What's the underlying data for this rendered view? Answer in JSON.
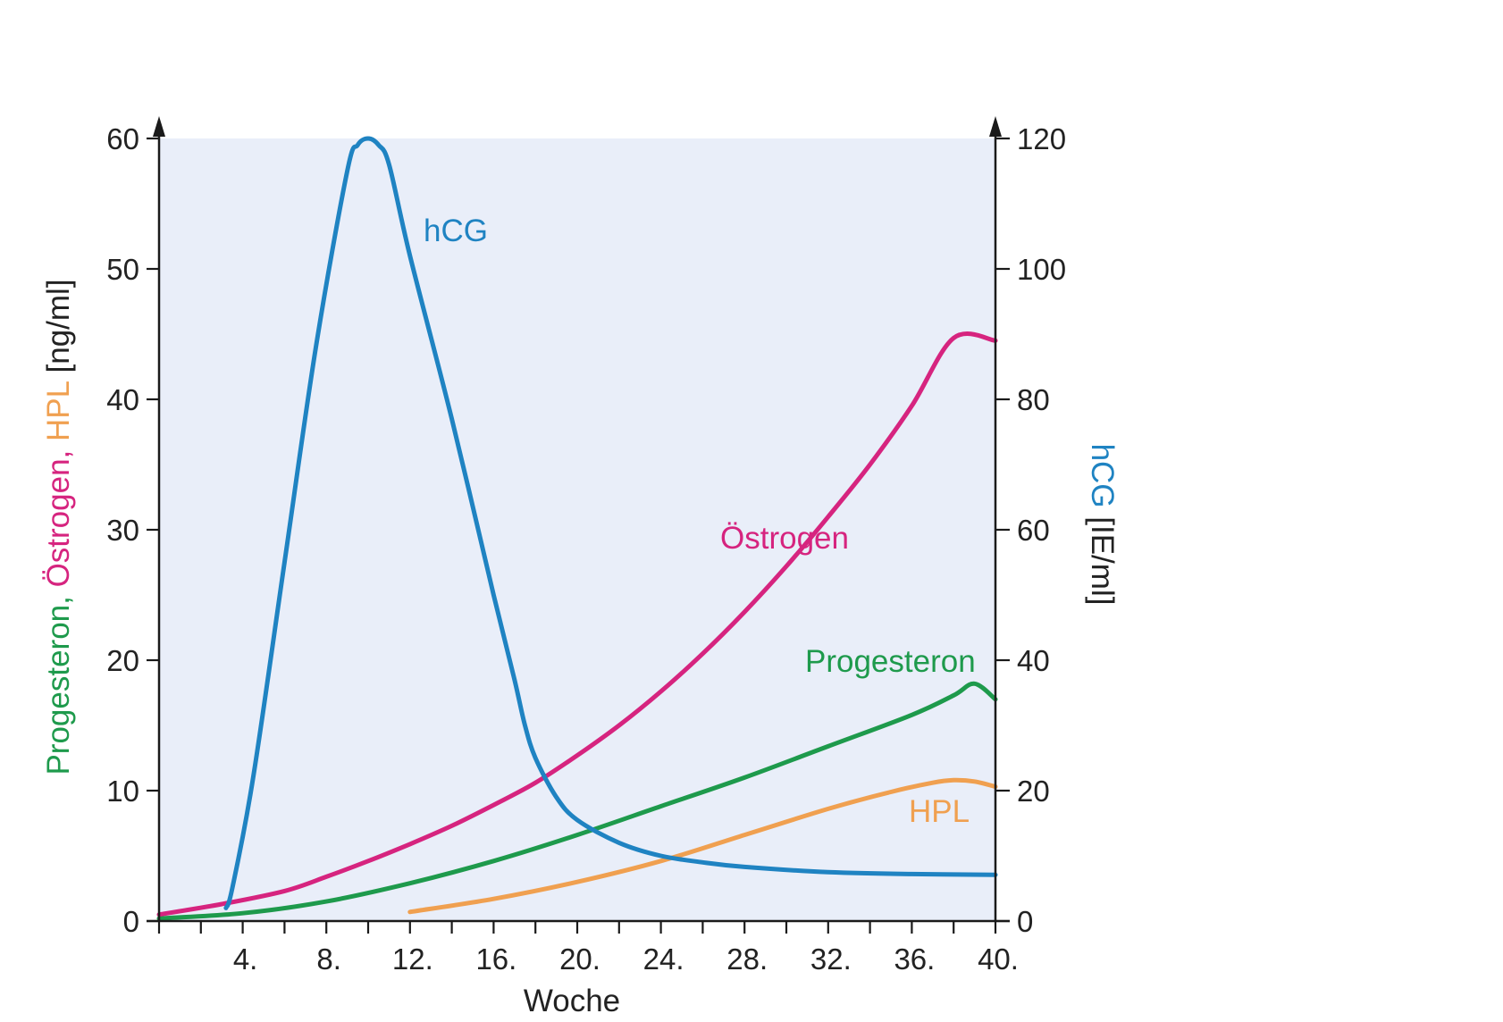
{
  "chart_data": {
    "type": "line",
    "xlabel": "Woche",
    "x_ticks": [
      "4.",
      "8.",
      "12.",
      "16.",
      "20.",
      "24.",
      "28.",
      "32.",
      "36.",
      "40."
    ],
    "xlim": [
      0,
      40
    ],
    "ylim_left": [
      0,
      60
    ],
    "ylim_right": [
      0,
      120
    ],
    "y_ticks_left": [
      "0",
      "10",
      "20",
      "30",
      "40",
      "50",
      "60"
    ],
    "y_ticks_right": [
      "0",
      "20",
      "40",
      "60",
      "80",
      "100",
      "120"
    ],
    "ylabel_left": {
      "parts": [
        {
          "text": "Progesteron, ",
          "color": "#1e9a4c"
        },
        {
          "text": "Östrogen, ",
          "color": "#d6247f"
        },
        {
          "text": "HPL",
          "color": "#f0a050"
        },
        {
          "text": " [ng/ml]",
          "color": "#222222"
        }
      ]
    },
    "ylabel_right": {
      "parts": [
        {
          "text": "hCG",
          "color": "#1f83c2"
        },
        {
          "text": " [IE/ml]",
          "color": "#222222"
        }
      ]
    },
    "series": [
      {
        "name": "hCG",
        "axis": "right",
        "color": "#1f83c2",
        "points": [
          [
            3.2,
            2
          ],
          [
            3.5,
            5
          ],
          [
            4.5,
            22
          ],
          [
            6,
            55
          ],
          [
            7.5,
            88
          ],
          [
            9,
            115
          ],
          [
            9.5,
            119
          ],
          [
            10,
            120
          ],
          [
            10.5,
            119
          ],
          [
            11,
            116
          ],
          [
            12,
            102
          ],
          [
            14,
            77
          ],
          [
            16,
            50
          ],
          [
            17,
            37
          ],
          [
            17.5,
            30
          ],
          [
            18,
            25
          ],
          [
            19,
            19
          ],
          [
            20,
            15.5
          ],
          [
            22,
            12
          ],
          [
            24,
            10
          ],
          [
            26,
            9
          ],
          [
            28,
            8.3
          ],
          [
            32,
            7.5
          ],
          [
            36,
            7.2
          ],
          [
            40,
            7.1
          ]
        ]
      },
      {
        "name": "Östrogen",
        "axis": "left",
        "color": "#d6247f",
        "points": [
          [
            0,
            0.5
          ],
          [
            3,
            1.3
          ],
          [
            6,
            2.3
          ],
          [
            8,
            3.4
          ],
          [
            10,
            4.6
          ],
          [
            12,
            5.9
          ],
          [
            14,
            7.3
          ],
          [
            16,
            8.9
          ],
          [
            18,
            10.6
          ],
          [
            20,
            12.7
          ],
          [
            22,
            15.0
          ],
          [
            24,
            17.6
          ],
          [
            26,
            20.5
          ],
          [
            28,
            23.7
          ],
          [
            30,
            27.2
          ],
          [
            32,
            31.0
          ],
          [
            34,
            35.0
          ],
          [
            36,
            39.5
          ],
          [
            38,
            44.7
          ],
          [
            40,
            44.5
          ]
        ]
      },
      {
        "name": "Progesteron",
        "axis": "left",
        "color": "#1e9a4c",
        "points": [
          [
            0,
            0.2
          ],
          [
            4,
            0.6
          ],
          [
            8,
            1.5
          ],
          [
            12,
            2.9
          ],
          [
            16,
            4.6
          ],
          [
            20,
            6.6
          ],
          [
            24,
            8.8
          ],
          [
            28,
            11.0
          ],
          [
            32,
            13.4
          ],
          [
            36,
            15.8
          ],
          [
            38,
            17.3
          ],
          [
            39,
            18.2
          ],
          [
            40,
            17.0
          ]
        ]
      },
      {
        "name": "HPL",
        "axis": "left",
        "color": "#f0a050",
        "points": [
          [
            12,
            0.7
          ],
          [
            16,
            1.7
          ],
          [
            20,
            3.0
          ],
          [
            24,
            4.6
          ],
          [
            28,
            6.6
          ],
          [
            32,
            8.6
          ],
          [
            35,
            9.9
          ],
          [
            37,
            10.6
          ],
          [
            38,
            10.8
          ],
          [
            39,
            10.7
          ],
          [
            40,
            10.3
          ]
        ]
      }
    ]
  }
}
